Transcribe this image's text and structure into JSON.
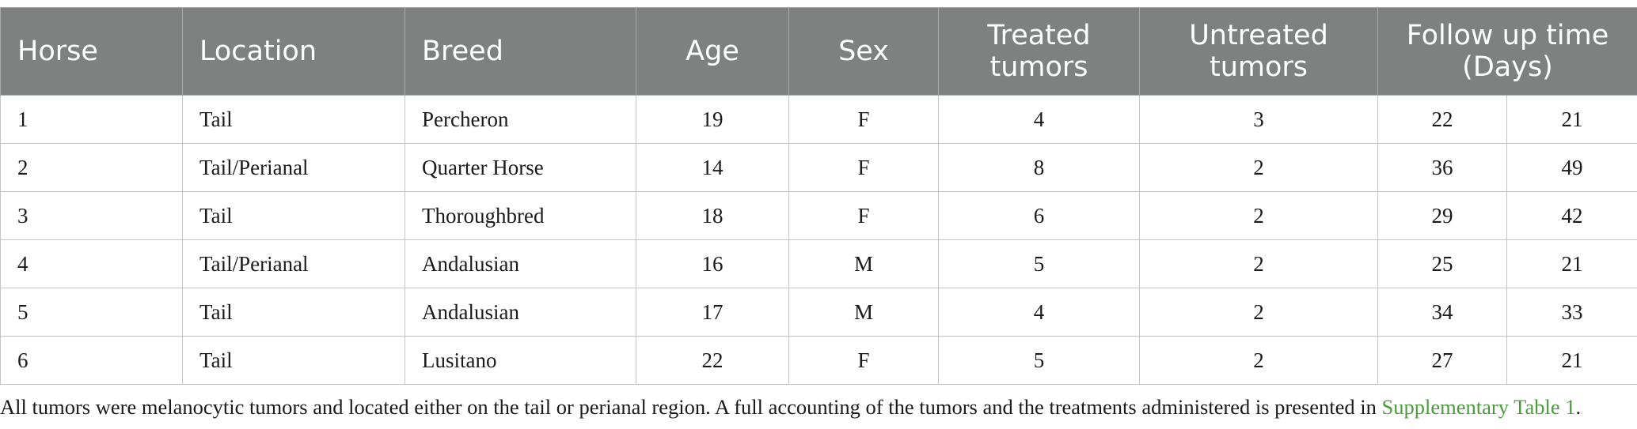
{
  "table": {
    "headers": {
      "horse": "Horse",
      "location": "Location",
      "breed": "Breed",
      "age": "Age",
      "sex": "Sex",
      "treated_line1": "Treated",
      "treated_line2": "tumors",
      "untreated_line1": "Untreated",
      "untreated_line2": "tumors",
      "followup_line1": "Follow up time",
      "followup_line2": "(Days)"
    },
    "rows": [
      {
        "horse": "1",
        "location": "Tail",
        "breed": "Percheron",
        "age": "19",
        "sex": "F",
        "treated": "4",
        "untreated": "3",
        "followup_a": "22",
        "followup_b": "21"
      },
      {
        "horse": "2",
        "location": "Tail/Perianal",
        "breed": "Quarter Horse",
        "age": "14",
        "sex": "F",
        "treated": "8",
        "untreated": "2",
        "followup_a": "36",
        "followup_b": "49"
      },
      {
        "horse": "3",
        "location": "Tail",
        "breed": "Thoroughbred",
        "age": "18",
        "sex": "F",
        "treated": "6",
        "untreated": "2",
        "followup_a": "29",
        "followup_b": "42"
      },
      {
        "horse": "4",
        "location": "Tail/Perianal",
        "breed": "Andalusian",
        "age": "16",
        "sex": "M",
        "treated": "5",
        "untreated": "2",
        "followup_a": "25",
        "followup_b": "21"
      },
      {
        "horse": "5",
        "location": "Tail",
        "breed": "Andalusian",
        "age": "17",
        "sex": "M",
        "treated": "4",
        "untreated": "2",
        "followup_a": "34",
        "followup_b": "33"
      },
      {
        "horse": "6",
        "location": "Tail",
        "breed": "Lusitano",
        "age": "22",
        "sex": "F",
        "treated": "5",
        "untreated": "2",
        "followup_a": "27",
        "followup_b": "21"
      }
    ]
  },
  "caption": {
    "text": "All tumors were melanocytic tumors and located either on the tail or perianal region. A full accounting of the tumors and the treatments administered is presented in ",
    "link": "Supplementary Table 1",
    "end": "."
  }
}
